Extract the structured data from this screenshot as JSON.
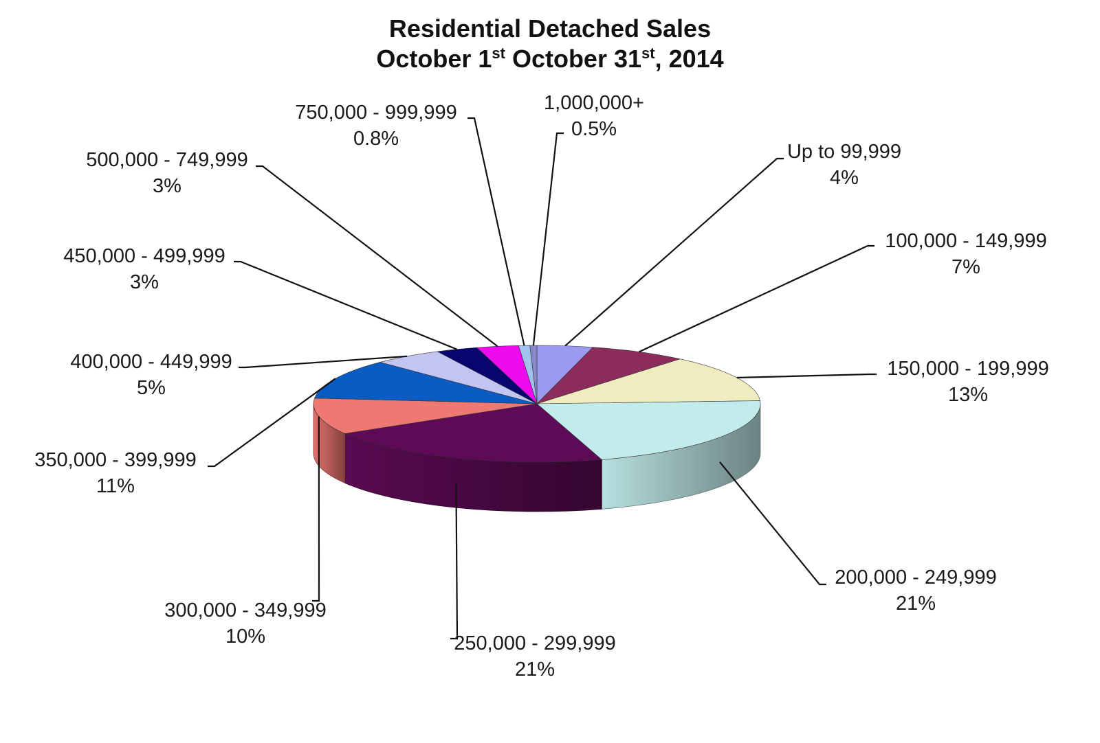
{
  "title": {
    "line1": "Residential Detached Sales",
    "line2_part1": "October 1",
    "line2_sup1": "st",
    "line2_part2": " October 31",
    "line2_sup2": "st",
    "line2_part3": ", 2014"
  },
  "chart_data": {
    "type": "pie",
    "title": "Residential Detached Sales October 1st October 31st, 2014",
    "three_d": true,
    "legend": "none",
    "labels_position": "outside-with-leader-lines",
    "slices": [
      {
        "label": "Up to 99,999",
        "value": 4,
        "value_label": "4%",
        "color": "#9a9af0"
      },
      {
        "label": "100,000 - 149,999",
        "value": 7,
        "value_label": "7%",
        "color": "#8b2c5c"
      },
      {
        "label": "150,000 - 199,999",
        "value": 13,
        "value_label": "13%",
        "color": "#f0ecc0"
      },
      {
        "label": "200,000 - 249,999",
        "value": 21,
        "value_label": "21%",
        "color": "#c2ecec"
      },
      {
        "label": "250,000 - 299,999",
        "value": 21,
        "value_label": "21%",
        "color": "#5e0a56"
      },
      {
        "label": "300,000 - 349,999",
        "value": 10,
        "value_label": "10%",
        "color": "#ee7872"
      },
      {
        "label": "350,000 - 399,999",
        "value": 11,
        "value_label": "11%",
        "color": "#0a5cc2"
      },
      {
        "label": "400,000 - 449,999",
        "value": 5,
        "value_label": "5%",
        "color": "#c4c4f2"
      },
      {
        "label": "450,000 - 499,999",
        "value": 3,
        "value_label": "3%",
        "color": "#06066e"
      },
      {
        "label": "500,000 - 749,999",
        "value": 3,
        "value_label": "3%",
        "color": "#ee0cee"
      },
      {
        "label": "750,000 - 999,999",
        "value": 0.8,
        "value_label": "0.8%",
        "color": "#a2c2ee"
      },
      {
        "label": "1,000,000+",
        "value": 0.5,
        "value_label": "0.5%",
        "color": "#8888c8"
      }
    ]
  }
}
